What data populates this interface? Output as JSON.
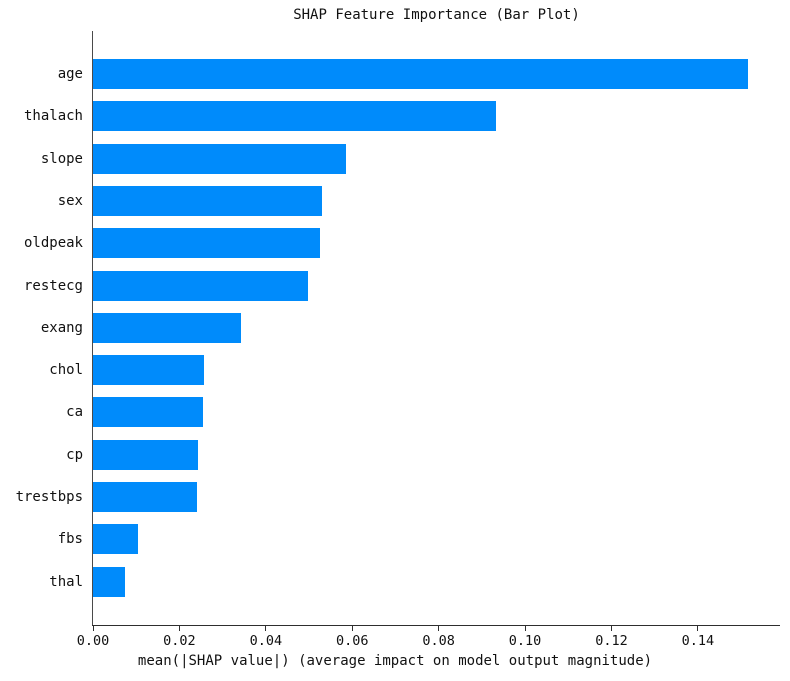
{
  "chart_data": {
    "type": "bar",
    "orientation": "horizontal",
    "title": "SHAP Feature Importance (Bar Plot)",
    "xlabel": "mean(|SHAP value|) (average impact on model output magnitude)",
    "categories": [
      "age",
      "thalach",
      "slope",
      "sex",
      "oldpeak",
      "restecg",
      "exang",
      "chol",
      "ca",
      "cp",
      "trestbps",
      "fbs",
      "thal"
    ],
    "values": [
      0.1515,
      0.0933,
      0.0586,
      0.053,
      0.0526,
      0.0497,
      0.0343,
      0.0258,
      0.0255,
      0.0242,
      0.024,
      0.0104,
      0.0073
    ],
    "xlim": [
      0,
      0.159
    ],
    "xticks": [
      0.0,
      0.02,
      0.04,
      0.06,
      0.08,
      0.1,
      0.12,
      0.14
    ],
    "xtick_labels": [
      "0.00",
      "0.02",
      "0.04",
      "0.06",
      "0.08",
      "0.10",
      "0.12",
      "0.14"
    ],
    "bar_color": "#008bfb",
    "grid": false,
    "background_color": "#ffffff",
    "legend_position": "none"
  }
}
